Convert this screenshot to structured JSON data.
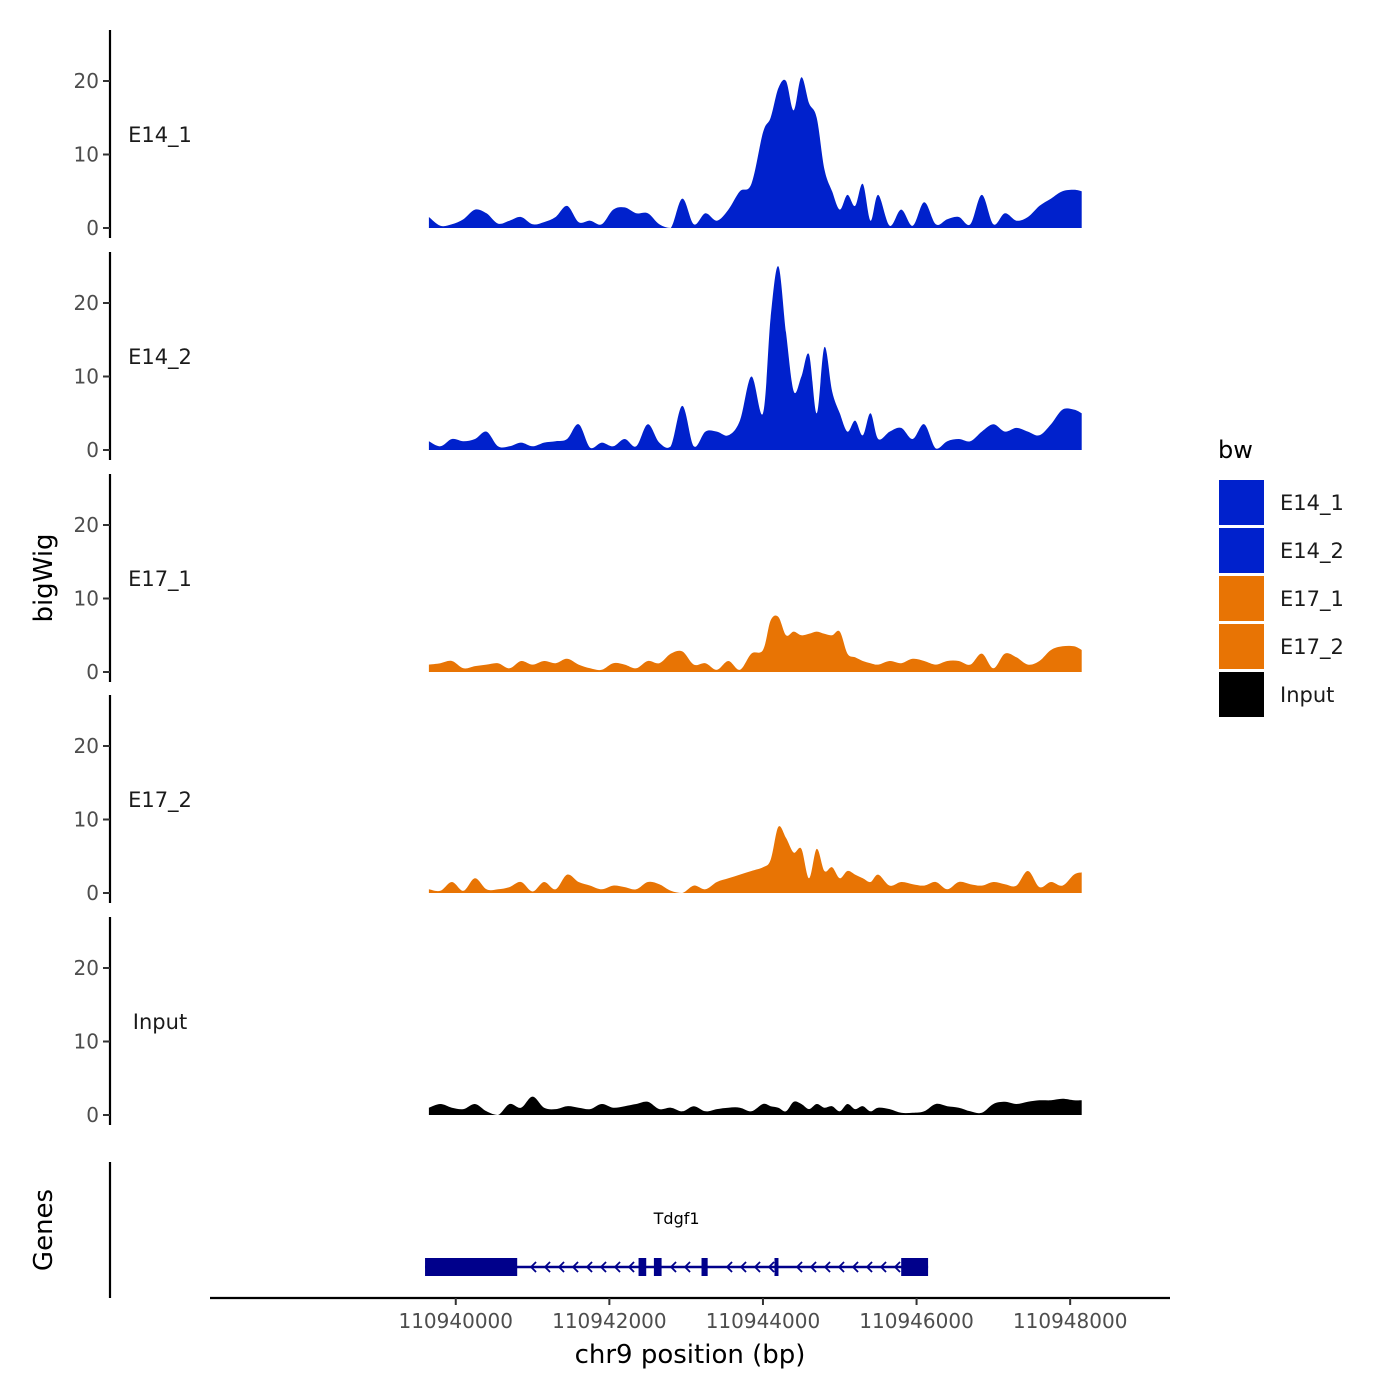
{
  "chart_data": {
    "type": "area",
    "title": "",
    "xlabel": "chr9 position (bp)",
    "ylabel": "bigWig",
    "genes_label": "Genes",
    "xlim": [
      110936800,
      110949300
    ],
    "x_ticks": [
      110940000,
      110942000,
      110944000,
      110946000,
      110948000
    ],
    "x_tick_labels": [
      "110940000",
      "110942000",
      "110944000",
      "110946000",
      "110948000"
    ],
    "ylim": [
      0,
      27
    ],
    "y_ticks": [
      0,
      10,
      20
    ],
    "y_tick_labels": [
      "0",
      "10",
      "20"
    ],
    "legend": {
      "title": "bw",
      "entries": [
        {
          "label": "E14_1",
          "color": "#0021CC"
        },
        {
          "label": "E14_2",
          "color": "#0021CC"
        },
        {
          "label": "E17_1",
          "color": "#E87404"
        },
        {
          "label": "E17_2",
          "color": "#E87404"
        },
        {
          "label": "Input",
          "color": "#000000"
        }
      ]
    },
    "series": [
      {
        "name": "E14_1",
        "color": "#0021CC",
        "x": [
          110939650,
          110939800,
          110939950,
          110940100,
          110940250,
          110940400,
          110940550,
          110940700,
          110940850,
          110941000,
          110941150,
          110941300,
          110941450,
          110941600,
          110941750,
          110941900,
          110942050,
          110942200,
          110942350,
          110942500,
          110942650,
          110942800,
          110942950,
          110943100,
          110943250,
          110943400,
          110943550,
          110943700,
          110943850,
          110944000,
          110944100,
          110944200,
          110944300,
          110944400,
          110944500,
          110944600,
          110944700,
          110944800,
          110944900,
          110945000,
          110945100,
          110945200,
          110945300,
          110945400,
          110945500,
          110945650,
          110945800,
          110945950,
          110946100,
          110946250,
          110946400,
          110946550,
          110946700,
          110946850,
          110947000,
          110947150,
          110947300,
          110947450,
          110947600,
          110947750,
          110947900,
          110948050,
          110948150
        ],
        "y": [
          1.5,
          0.3,
          0.5,
          1.2,
          2.5,
          2.0,
          0.6,
          1.0,
          1.5,
          0.5,
          0.8,
          1.5,
          3.0,
          0.8,
          1.0,
          0.5,
          2.5,
          2.8,
          2.0,
          2.0,
          0.5,
          0.0,
          4.0,
          0.5,
          2.0,
          1.0,
          2.5,
          5.0,
          6.0,
          13.0,
          15.0,
          19.0,
          20.0,
          16.0,
          20.5,
          17.0,
          15.0,
          8.0,
          5.0,
          2.5,
          4.5,
          3.0,
          6.0,
          1.0,
          4.5,
          0.3,
          2.5,
          0.3,
          3.5,
          0.5,
          1.2,
          1.5,
          0.5,
          4.5,
          0.5,
          2.0,
          1.0,
          1.5,
          3.0,
          4.0,
          5.0,
          5.2,
          5.0
        ]
      },
      {
        "name": "E14_2",
        "color": "#0021CC",
        "x": [
          110939650,
          110939800,
          110939950,
          110940100,
          110940250,
          110940400,
          110940550,
          110940700,
          110940850,
          110941000,
          110941150,
          110941300,
          110941450,
          110941600,
          110941750,
          110941900,
          110942050,
          110942200,
          110942350,
          110942500,
          110942650,
          110942800,
          110942950,
          110943100,
          110943250,
          110943400,
          110943550,
          110943700,
          110943850,
          110944000,
          110944100,
          110944200,
          110944300,
          110944400,
          110944500,
          110944600,
          110944700,
          110944800,
          110944900,
          110945000,
          110945100,
          110945200,
          110945300,
          110945400,
          110945500,
          110945650,
          110945800,
          110945950,
          110946100,
          110946250,
          110946400,
          110946550,
          110946700,
          110946850,
          110947000,
          110947150,
          110947300,
          110947450,
          110947600,
          110947750,
          110947900,
          110948050,
          110948150
        ],
        "y": [
          1.2,
          0.5,
          1.5,
          1.2,
          1.5,
          2.5,
          0.5,
          0.5,
          1.0,
          0.5,
          1.0,
          1.2,
          1.5,
          3.5,
          0.3,
          1.0,
          0.5,
          1.5,
          0.5,
          3.5,
          1.0,
          0.5,
          6.0,
          0.5,
          2.5,
          2.5,
          2.0,
          4.0,
          10.0,
          5.0,
          18.0,
          25.0,
          16.0,
          8.0,
          10.0,
          13.0,
          5.0,
          14.0,
          8.0,
          5.0,
          2.5,
          4.0,
          2.0,
          5.0,
          1.5,
          2.5,
          3.0,
          1.5,
          3.5,
          0.2,
          1.2,
          1.5,
          1.2,
          2.5,
          3.5,
          2.5,
          3.0,
          2.5,
          2.0,
          3.5,
          5.5,
          5.5,
          5.0
        ]
      },
      {
        "name": "E17_1",
        "color": "#E87404",
        "x": [
          110939650,
          110939800,
          110939950,
          110940100,
          110940250,
          110940400,
          110940550,
          110940700,
          110940850,
          110941000,
          110941150,
          110941300,
          110941450,
          110941600,
          110941750,
          110941900,
          110942050,
          110942200,
          110942350,
          110942500,
          110942650,
          110942800,
          110942950,
          110943100,
          110943250,
          110943400,
          110943550,
          110943700,
          110943850,
          110944000,
          110944100,
          110944200,
          110944300,
          110944400,
          110944500,
          110944600,
          110944700,
          110944800,
          110944900,
          110945000,
          110945100,
          110945200,
          110945300,
          110945400,
          110945500,
          110945650,
          110945800,
          110945950,
          110946100,
          110946250,
          110946400,
          110946550,
          110946700,
          110946850,
          110947000,
          110947150,
          110947300,
          110947450,
          110947600,
          110947750,
          110947900,
          110948050,
          110948150
        ],
        "y": [
          1.0,
          1.2,
          1.5,
          0.5,
          0.8,
          1.0,
          1.2,
          0.5,
          1.5,
          1.0,
          1.5,
          1.2,
          1.8,
          1.0,
          0.5,
          0.3,
          1.2,
          1.0,
          0.5,
          1.5,
          1.2,
          2.5,
          2.8,
          1.0,
          1.2,
          0.3,
          1.5,
          0.3,
          2.5,
          3.0,
          7.0,
          7.5,
          5.0,
          5.5,
          5.0,
          5.2,
          5.5,
          5.2,
          5.0,
          5.5,
          2.5,
          2.0,
          1.5,
          1.2,
          1.0,
          1.5,
          1.2,
          1.8,
          1.5,
          1.0,
          1.5,
          1.5,
          1.0,
          2.5,
          0.5,
          2.5,
          2.0,
          1.0,
          1.5,
          3.0,
          3.5,
          3.5,
          3.0
        ]
      },
      {
        "name": "E17_2",
        "color": "#E87404",
        "x": [
          110939650,
          110939800,
          110939950,
          110940100,
          110940250,
          110940400,
          110940550,
          110940700,
          110940850,
          110941000,
          110941150,
          110941300,
          110941450,
          110941600,
          110941750,
          110941900,
          110942050,
          110942200,
          110942350,
          110942500,
          110942650,
          110942800,
          110942950,
          110943100,
          110943250,
          110943400,
          110943550,
          110943700,
          110943850,
          110944000,
          110944100,
          110944200,
          110944300,
          110944400,
          110944500,
          110944600,
          110944700,
          110944800,
          110944900,
          110945000,
          110945100,
          110945200,
          110945300,
          110945400,
          110945500,
          110945650,
          110945800,
          110945950,
          110946100,
          110946250,
          110946400,
          110946550,
          110946700,
          110946850,
          110947000,
          110947150,
          110947300,
          110947450,
          110947600,
          110947750,
          110947900,
          110948050,
          110948150
        ],
        "y": [
          0.5,
          0.3,
          1.5,
          0.3,
          2.0,
          0.5,
          0.5,
          0.8,
          1.5,
          0.2,
          1.5,
          0.5,
          2.5,
          1.5,
          1.0,
          0.5,
          1.0,
          0.8,
          0.5,
          1.5,
          1.2,
          0.3,
          0.0,
          1.0,
          0.5,
          1.5,
          2.0,
          2.5,
          3.0,
          3.5,
          4.5,
          9.0,
          7.5,
          5.5,
          6.0,
          2.0,
          6.0,
          3.0,
          3.5,
          2.0,
          3.0,
          2.5,
          2.0,
          1.5,
          2.5,
          1.0,
          1.5,
          1.2,
          1.0,
          1.5,
          0.5,
          1.5,
          1.2,
          1.0,
          1.5,
          1.2,
          1.0,
          3.0,
          0.8,
          1.5,
          1.0,
          2.5,
          2.8
        ]
      },
      {
        "name": "Input",
        "color": "#000000",
        "x": [
          110939650,
          110939800,
          110939950,
          110940100,
          110940250,
          110940400,
          110940550,
          110940700,
          110940850,
          110941000,
          110941150,
          110941300,
          110941450,
          110941600,
          110941750,
          110941900,
          110942050,
          110942200,
          110942350,
          110942500,
          110942650,
          110942800,
          110942950,
          110943100,
          110943250,
          110943400,
          110943550,
          110943700,
          110943850,
          110944000,
          110944100,
          110944200,
          110944300,
          110944400,
          110944500,
          110944600,
          110944700,
          110944800,
          110944900,
          110945000,
          110945100,
          110945200,
          110945300,
          110945400,
          110945500,
          110945650,
          110945800,
          110945950,
          110946100,
          110946250,
          110946400,
          110946550,
          110946700,
          110946850,
          110947000,
          110947150,
          110947300,
          110947450,
          110947600,
          110947750,
          110947900,
          110948050,
          110948150
        ],
        "y": [
          1.0,
          1.5,
          1.0,
          0.8,
          1.5,
          0.5,
          0.0,
          1.5,
          1.0,
          2.5,
          1.0,
          0.8,
          1.2,
          1.0,
          0.8,
          1.5,
          1.0,
          1.2,
          1.5,
          1.8,
          0.8,
          1.0,
          0.5,
          1.2,
          0.5,
          0.8,
          1.0,
          1.0,
          0.5,
          1.5,
          1.2,
          1.0,
          0.5,
          1.8,
          1.5,
          0.8,
          1.5,
          1.0,
          1.2,
          0.5,
          1.5,
          0.8,
          1.2,
          0.5,
          1.0,
          0.8,
          0.3,
          0.3,
          0.5,
          1.5,
          1.2,
          1.0,
          0.5,
          0.3,
          1.5,
          1.8,
          1.5,
          1.8,
          2.0,
          2.0,
          2.2,
          2.0,
          2.0
        ]
      }
    ],
    "gene": {
      "name": "Tdgf1",
      "strand": "-",
      "start": 110939600,
      "end": 110946150,
      "exons": [
        [
          110939600,
          110940800
        ],
        [
          110942380,
          110942480
        ],
        [
          110942580,
          110942680
        ],
        [
          110943200,
          110943280
        ],
        [
          110944150,
          110944200
        ],
        [
          110945800,
          110946150
        ]
      ]
    }
  }
}
